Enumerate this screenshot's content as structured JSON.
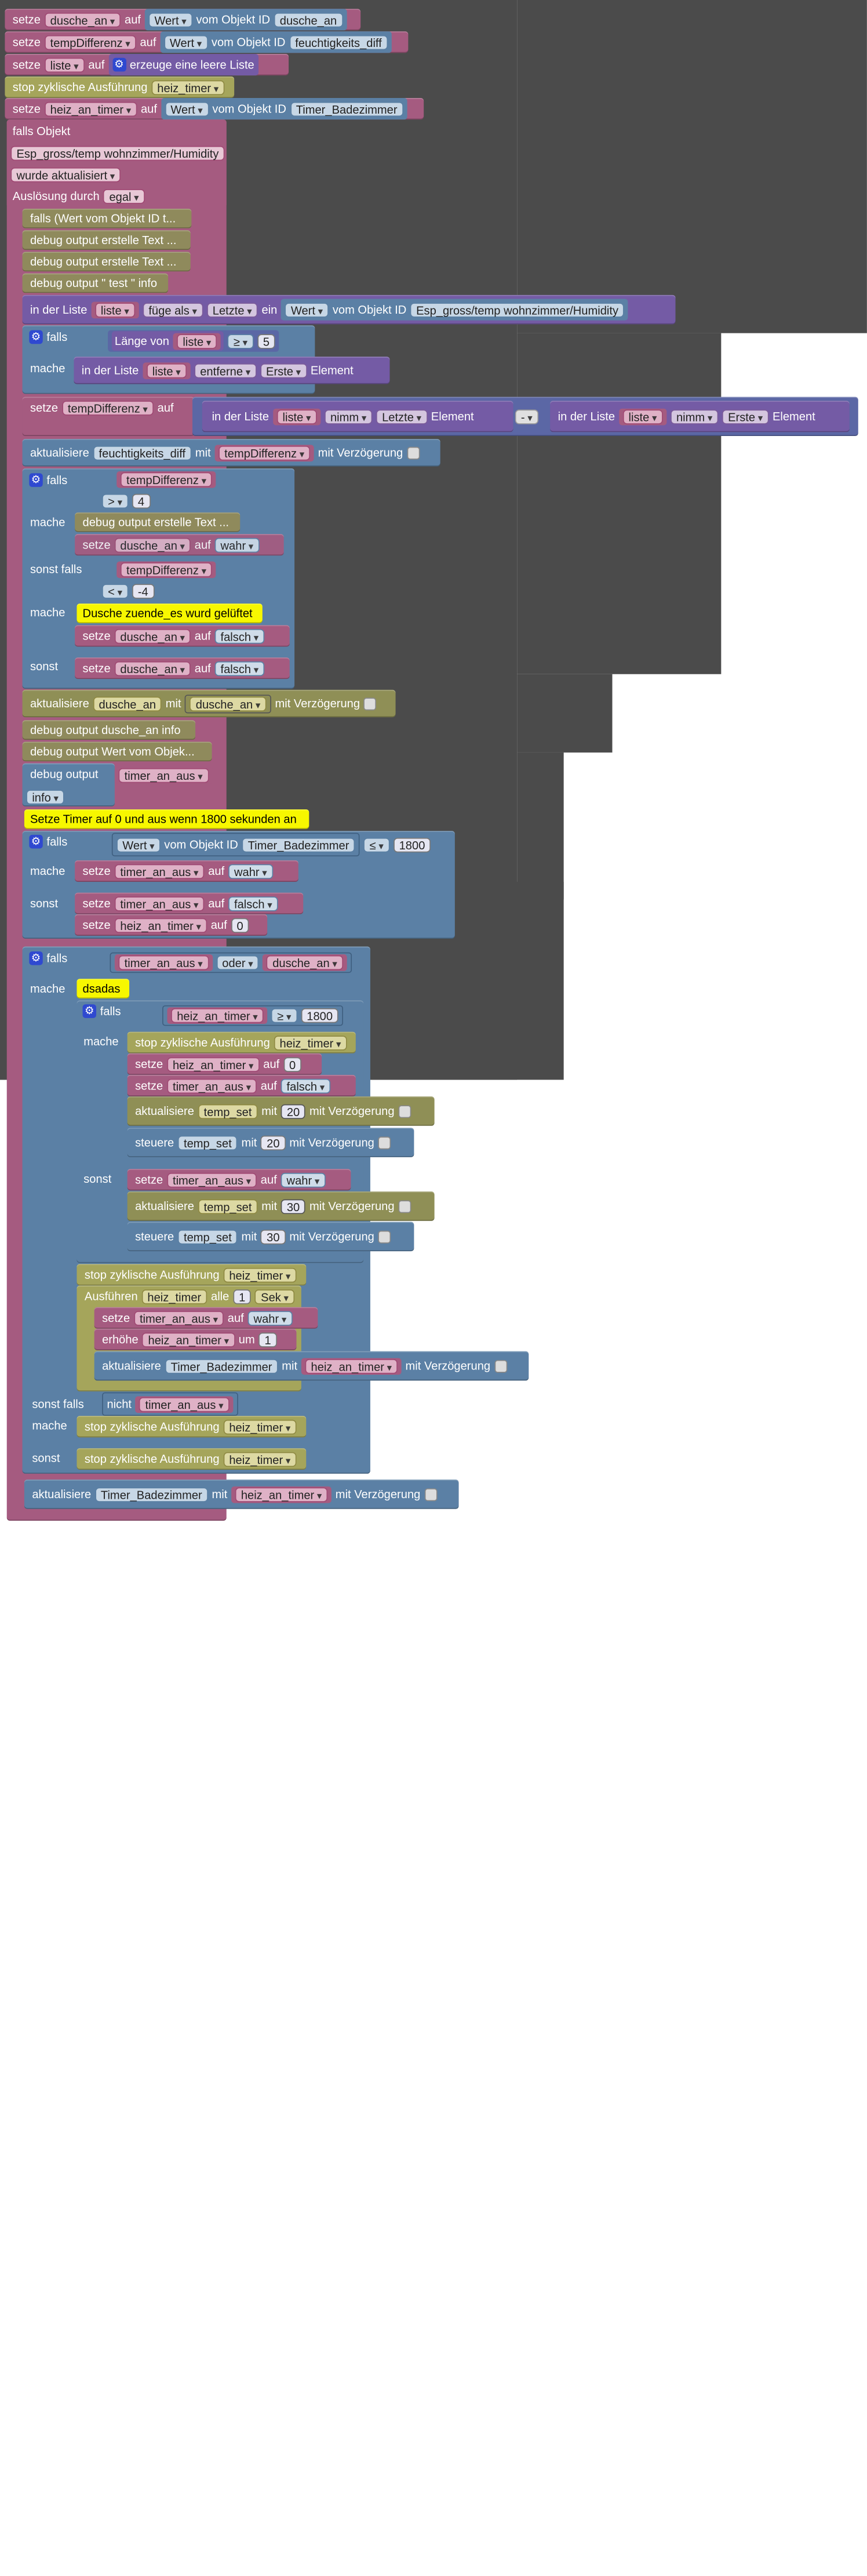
{
  "colors": {
    "workspace": "#4b4b4b",
    "variable": "#a55b80",
    "object": "#5b80a5",
    "list": "#745ba5",
    "timer": "#a5a55b",
    "debug": "#8f8a5c",
    "comment": "#f7f700",
    "math": "#5b67a5"
  },
  "icons": {
    "gear": "gear-icon",
    "dropdown": "chevron-down-icon",
    "checkbox": "checkbox-icon"
  },
  "t": {
    "setze": "setze",
    "auf": "auf",
    "wert": "Wert",
    "vom_objekt_id": "vom Objekt ID",
    "dusche_an": "dusche_an",
    "tempDifferenz": "tempDifferenz",
    "feuchtigkeits_diff": "feuchtigkeits_diff",
    "liste": "liste",
    "erzeuge": "erzeuge eine leere Liste",
    "stop_zyk": "stop zyklische Ausführung",
    "heiz_timer": "heiz_timer",
    "heiz_an_timer": "heiz_an_timer",
    "timer_badezimmer": "Timer_Badezimmer",
    "falls_objekt": "falls Objekt",
    "esp_obj": "Esp_gross/temp wohnzimmer/Humidity",
    "wurde_akt": "wurde aktualisiert",
    "ausloesung": "Auslösung durch",
    "egal": "egal",
    "falls_wert": "falls (Wert vom Objekt ID t...",
    "debug_erstelle": "debug output erstelle Text ...",
    "debug_test": "debug output \" test \" info",
    "in_der_liste": "in der Liste",
    "fuege_als": "füge als",
    "letzte": "Letzte",
    "ein": "ein",
    "falls": "falls",
    "laenge_von": "Länge von",
    "ge": "≥",
    "five": "5",
    "mache": "mache",
    "entferne": "entferne",
    "erste": "Erste",
    "element": "Element",
    "nimm": "nimm",
    "minus": "-",
    "aktualisiere": "aktualisiere",
    "mit": "mit",
    "mit_verz": "mit Verzögerung",
    "gt": ">",
    "four": "4",
    "wahr": "wahr",
    "sonst_falls": "sonst falls",
    "lt": "<",
    "neg4": "-4",
    "cmt_dusche": "Dusche zuende_es wurd gelüftet",
    "falsch": "falsch",
    "sonst": "sonst",
    "debug_dusche": "debug output dusche_an info",
    "debug_wert": "debug output Wert vom Objek...",
    "debug_output": "debug output",
    "timer_an_aus": "timer_an_aus",
    "info": "info",
    "cmt_timer": "Setze Timer auf 0 und aus wenn 1800 sekunden an",
    "le": "≤",
    "n1800": "1800",
    "zero": "0",
    "oder": "oder",
    "cmt_dsadas": "dsadas",
    "temp_set": "temp_set",
    "n20": "20",
    "n30": "30",
    "steuere": "steuere",
    "ausfuehren": "Ausführen",
    "alle": "alle",
    "one": "1",
    "sek": "Sek",
    "erhoehe": "erhöhe",
    "um": "um",
    "nicht": "nicht"
  }
}
